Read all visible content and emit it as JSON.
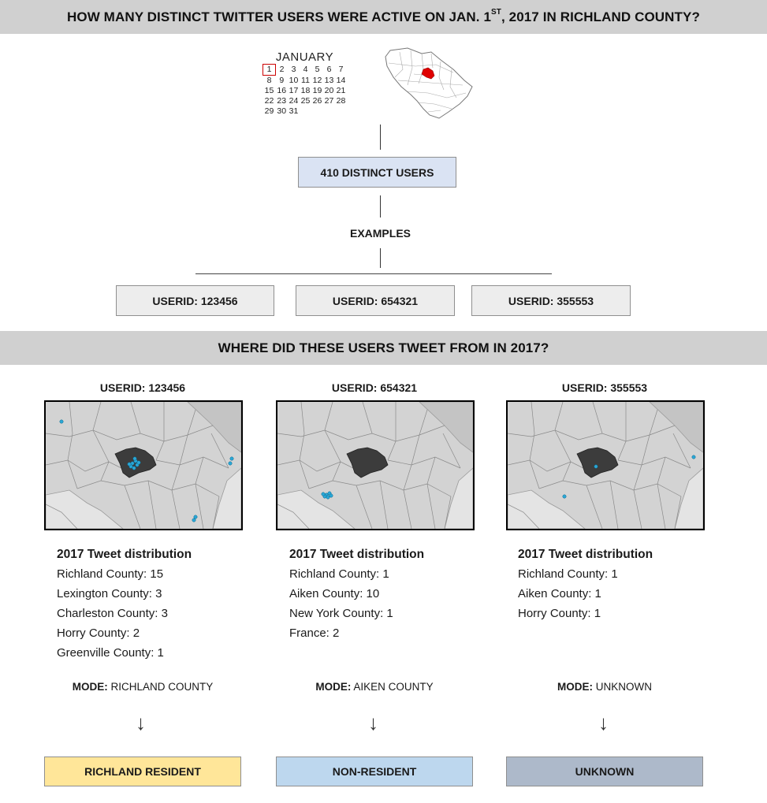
{
  "header": {
    "question_pre": "HOW MANY DISTINCT TWITTER USERS WERE ACTIVE ON JAN. 1",
    "question_sup": "ST",
    "question_post": ", 2017 IN RICHLAND COUNTY?"
  },
  "calendar": {
    "month": "JANUARY",
    "weeks": [
      [
        "1",
        "2",
        "3",
        "4",
        "5",
        "6",
        "7"
      ],
      [
        "8",
        "9",
        "10",
        "11",
        "12",
        "13",
        "14"
      ],
      [
        "15",
        "16",
        "17",
        "18",
        "19",
        "20",
        "21"
      ],
      [
        "22",
        "23",
        "24",
        "25",
        "26",
        "27",
        "28"
      ],
      [
        "29",
        "30",
        "31",
        "",
        "",
        "",
        ""
      ]
    ],
    "highlight_color": "#cc0000"
  },
  "state_map": {
    "highlight_color": "#e00000"
  },
  "summary_box": {
    "label": "410 DISTINCT USERS",
    "fill": "#dae3f3"
  },
  "examples_label": "EXAMPLES",
  "example_users": [
    "USERID: 123456",
    "USERID: 654321",
    "USERID: 355553"
  ],
  "section2_title": "WHERE DID THESE USERS TWEET FROM IN 2017?",
  "users": [
    {
      "title": "USERID: 123456",
      "dist_heading": "2017 Tweet distribution",
      "dist": [
        "Richland County: 15",
        "Lexington County: 3",
        "Charleston County: 3",
        "Horry County: 2",
        "Greenville County: 1"
      ],
      "mode_label": "MODE:",
      "mode_value": " RICHLAND COUNTY",
      "result": "RICHLAND RESIDENT",
      "result_color": "#ffe699"
    },
    {
      "title": "USERID: 654321",
      "dist_heading": "2017 Tweet distribution",
      "dist": [
        "Richland County: 1",
        "Aiken County: 10",
        "New York County: 1",
        "France: 2"
      ],
      "mode_label": "MODE:",
      "mode_value": " AIKEN COUNTY",
      "result": "NON-RESIDENT",
      "result_color": "#bdd7ee"
    },
    {
      "title": "USERID: 355553",
      "dist_heading": "2017 Tweet distribution",
      "dist": [
        "Richland County: 1",
        "Aiken County: 1",
        "Horry County: 1"
      ],
      "mode_label": "MODE:",
      "mode_value": " UNKNOWN",
      "result": "UNKNOWN",
      "result_color": "#adb9ca"
    }
  ],
  "colors": {
    "banner": "#d0d0d0",
    "tweet_dot": "#2aa7d6",
    "richland_fill": "#3c3c3c"
  }
}
